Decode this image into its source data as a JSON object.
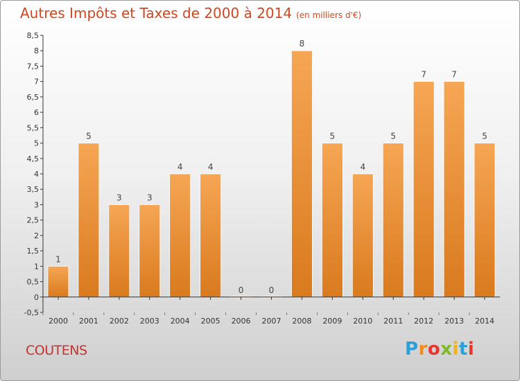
{
  "title": "Autres Impôts et Taxes de 2000 à 2014",
  "subtitle": "(en milliers d'€)",
  "commune": "COUTENS",
  "logo": {
    "letters": [
      "P",
      "r",
      "o",
      "x",
      "i",
      "t",
      "i"
    ],
    "colors": [
      "#2a9fd8",
      "#f28c1e",
      "#e8362e",
      "#7fba2a",
      "#f2b21e",
      "#2a9fd8",
      "#e8362e"
    ]
  },
  "colors": {
    "bar_top": "#f6a654",
    "bar_bottom": "#d97a1e",
    "title": "#d1461e"
  },
  "chart_data": {
    "type": "bar",
    "title": "Autres Impôts et Taxes de 2000 à 2014",
    "subtitle": "(en milliers d'€)",
    "categories": [
      "2000",
      "2001",
      "2002",
      "2003",
      "2004",
      "2005",
      "2006",
      "2007",
      "2008",
      "2009",
      "2010",
      "2011",
      "2012",
      "2013",
      "2014"
    ],
    "values": [
      1,
      5,
      3,
      3,
      4,
      4,
      0,
      0,
      8,
      5,
      4,
      5,
      7,
      7,
      5
    ],
    "data_labels": [
      "1",
      "5",
      "3",
      "3",
      "4",
      "4",
      "0",
      "0",
      "8",
      "5",
      "4",
      "5",
      "7",
      "7",
      "5"
    ],
    "ylim": [
      -0.5,
      8.5
    ],
    "yticks": [
      "-0,5",
      "0",
      "0,5",
      "1",
      "1,5",
      "2",
      "2,5",
      "3",
      "3,5",
      "4",
      "4,5",
      "5",
      "5,5",
      "6",
      "6,5",
      "7",
      "7,5",
      "8",
      "8,5"
    ],
    "ytick_values": [
      -0.5,
      0,
      0.5,
      1,
      1.5,
      2,
      2.5,
      3,
      3.5,
      4,
      4.5,
      5,
      5.5,
      6,
      6.5,
      7,
      7.5,
      8,
      8.5
    ],
    "grid": false
  }
}
